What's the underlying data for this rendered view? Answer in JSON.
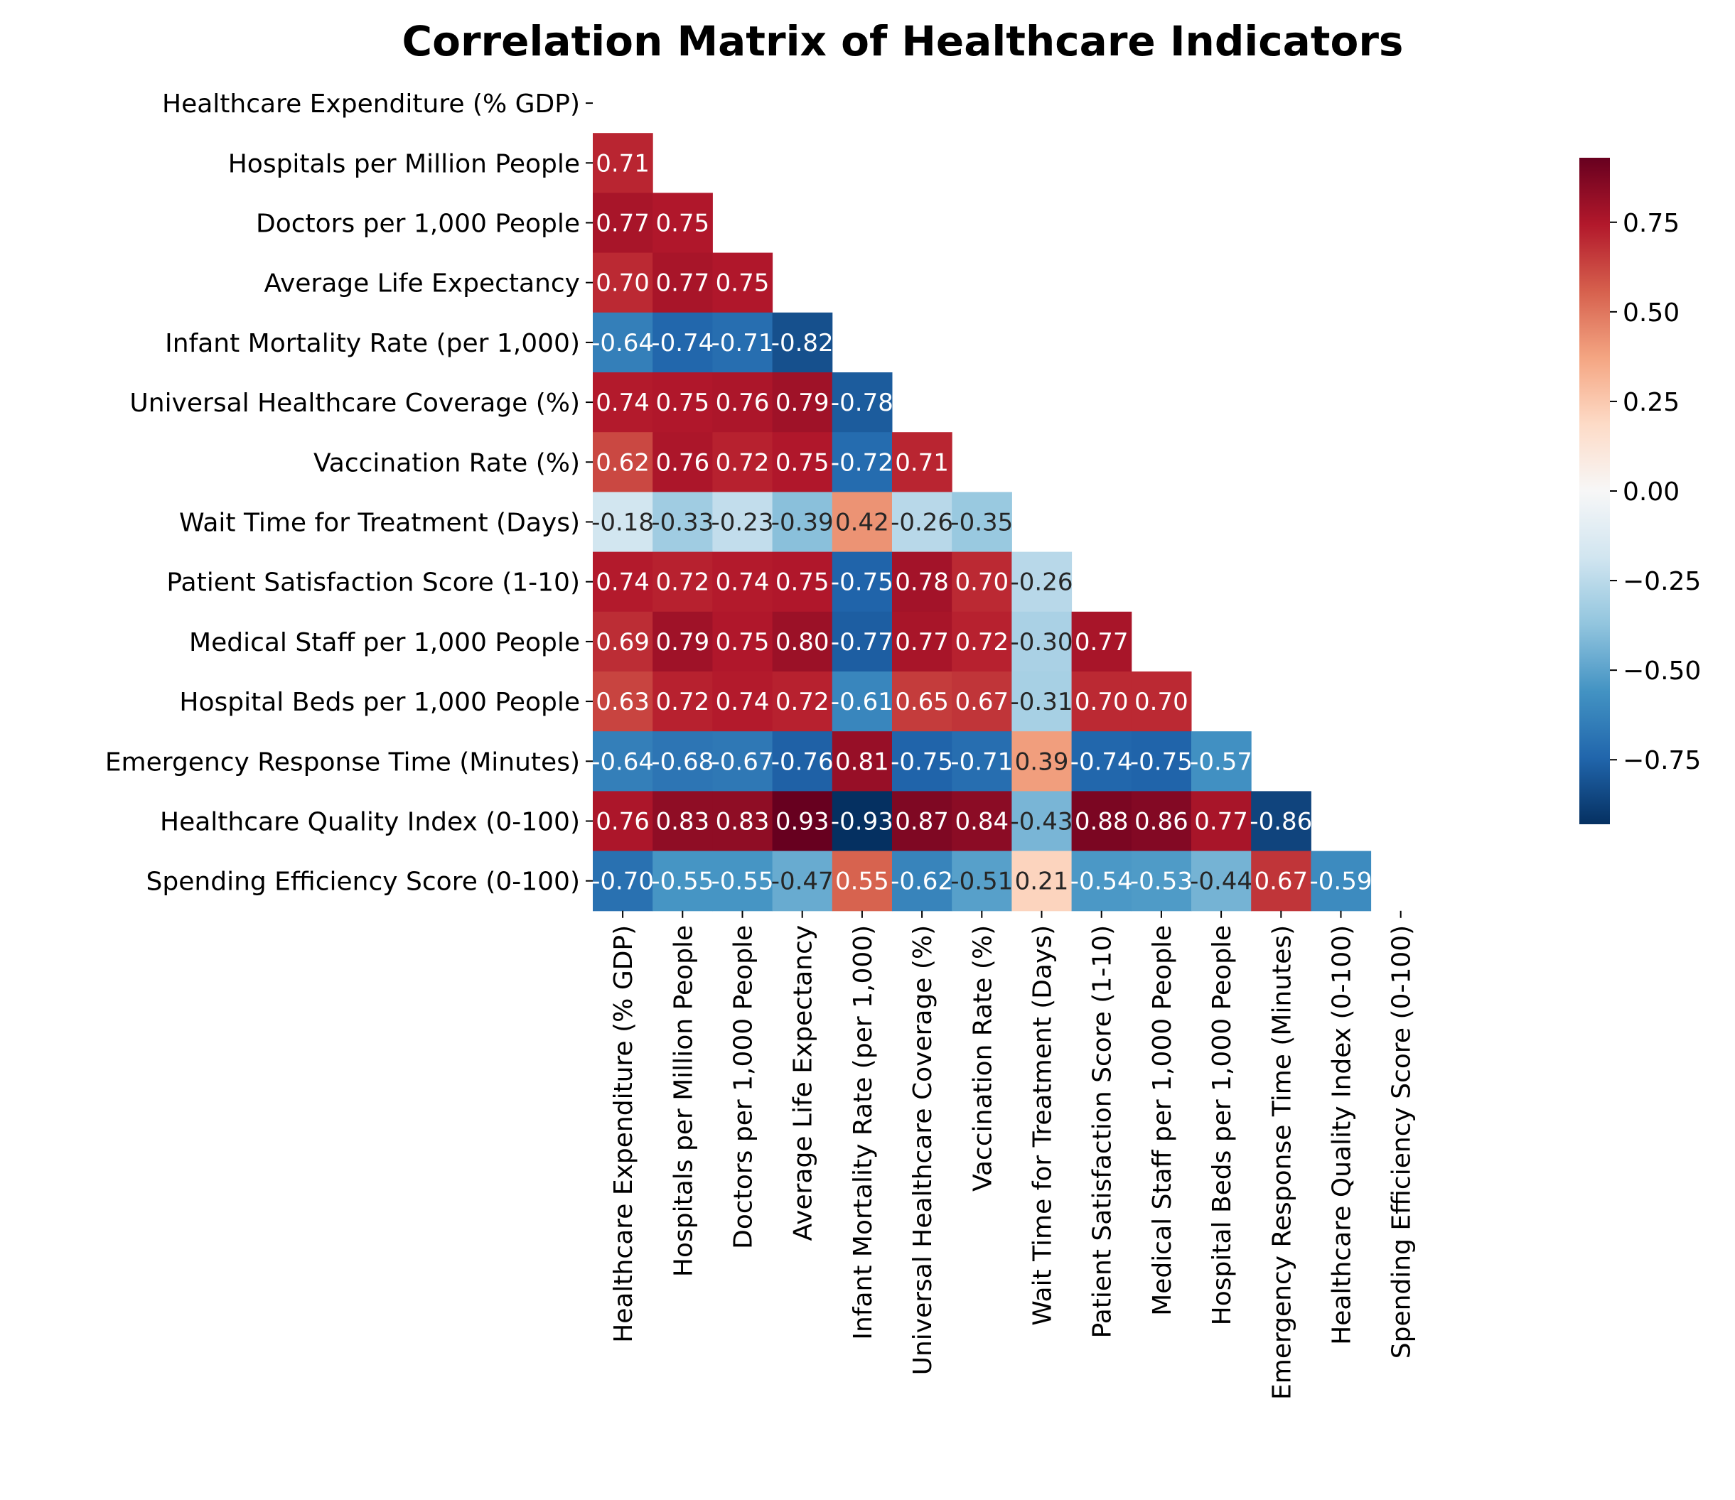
{
  "chart_data": {
    "type": "heatmap",
    "title": "Correlation Matrix of Healthcare Indicators",
    "labels": [
      "Healthcare Expenditure (% GDP)",
      "Hospitals per Million People",
      "Doctors per 1,000 People",
      "Average Life Expectancy",
      "Infant Mortality Rate (per 1,000)",
      "Universal Healthcare Coverage (%)",
      "Vaccination Rate (%)",
      "Wait Time for Treatment (Days)",
      "Patient Satisfaction Score (1-10)",
      "Medical Staff per 1,000 People",
      "Hospital Beds per 1,000 People",
      "Emergency Response Time (Minutes)",
      "Healthcare Quality Index (0-100)",
      "Spending Efficiency Score (0-100)"
    ],
    "values": [
      [],
      [
        0.71
      ],
      [
        0.77,
        0.75
      ],
      [
        0.7,
        0.77,
        0.75
      ],
      [
        -0.64,
        -0.74,
        -0.71,
        -0.82
      ],
      [
        0.74,
        0.75,
        0.76,
        0.79,
        -0.78
      ],
      [
        0.62,
        0.76,
        0.72,
        0.75,
        -0.72,
        0.71
      ],
      [
        -0.18,
        -0.33,
        -0.23,
        -0.39,
        0.42,
        -0.26,
        -0.35
      ],
      [
        0.74,
        0.72,
        0.74,
        0.75,
        -0.75,
        0.78,
        0.7,
        -0.26
      ],
      [
        0.69,
        0.79,
        0.75,
        0.8,
        -0.77,
        0.77,
        0.72,
        -0.3,
        0.77
      ],
      [
        0.63,
        0.72,
        0.74,
        0.72,
        -0.61,
        0.65,
        0.67,
        -0.31,
        0.7,
        0.7
      ],
      [
        -0.64,
        -0.68,
        -0.67,
        -0.76,
        0.81,
        -0.75,
        -0.71,
        0.39,
        -0.74,
        -0.75,
        -0.57
      ],
      [
        0.76,
        0.83,
        0.83,
        0.93,
        -0.93,
        0.87,
        0.84,
        -0.43,
        0.88,
        0.86,
        0.77,
        -0.86
      ],
      [
        -0.7,
        -0.55,
        -0.55,
        -0.47,
        0.55,
        -0.62,
        -0.51,
        0.21,
        -0.54,
        -0.53,
        -0.44,
        0.67,
        -0.59
      ]
    ],
    "mask": "upper-triangle-including-diagonal",
    "colormap": "RdBu_r",
    "vmin": -0.93,
    "vmax": 0.93,
    "colorbar": {
      "ticks": [
        0.75,
        0.5,
        0.25,
        0.0,
        -0.25,
        -0.5,
        -0.75
      ],
      "tick_labels": [
        "0.75",
        "0.50",
        "0.25",
        "0.00",
        "−0.25",
        "−0.50",
        "−0.75"
      ]
    }
  }
}
